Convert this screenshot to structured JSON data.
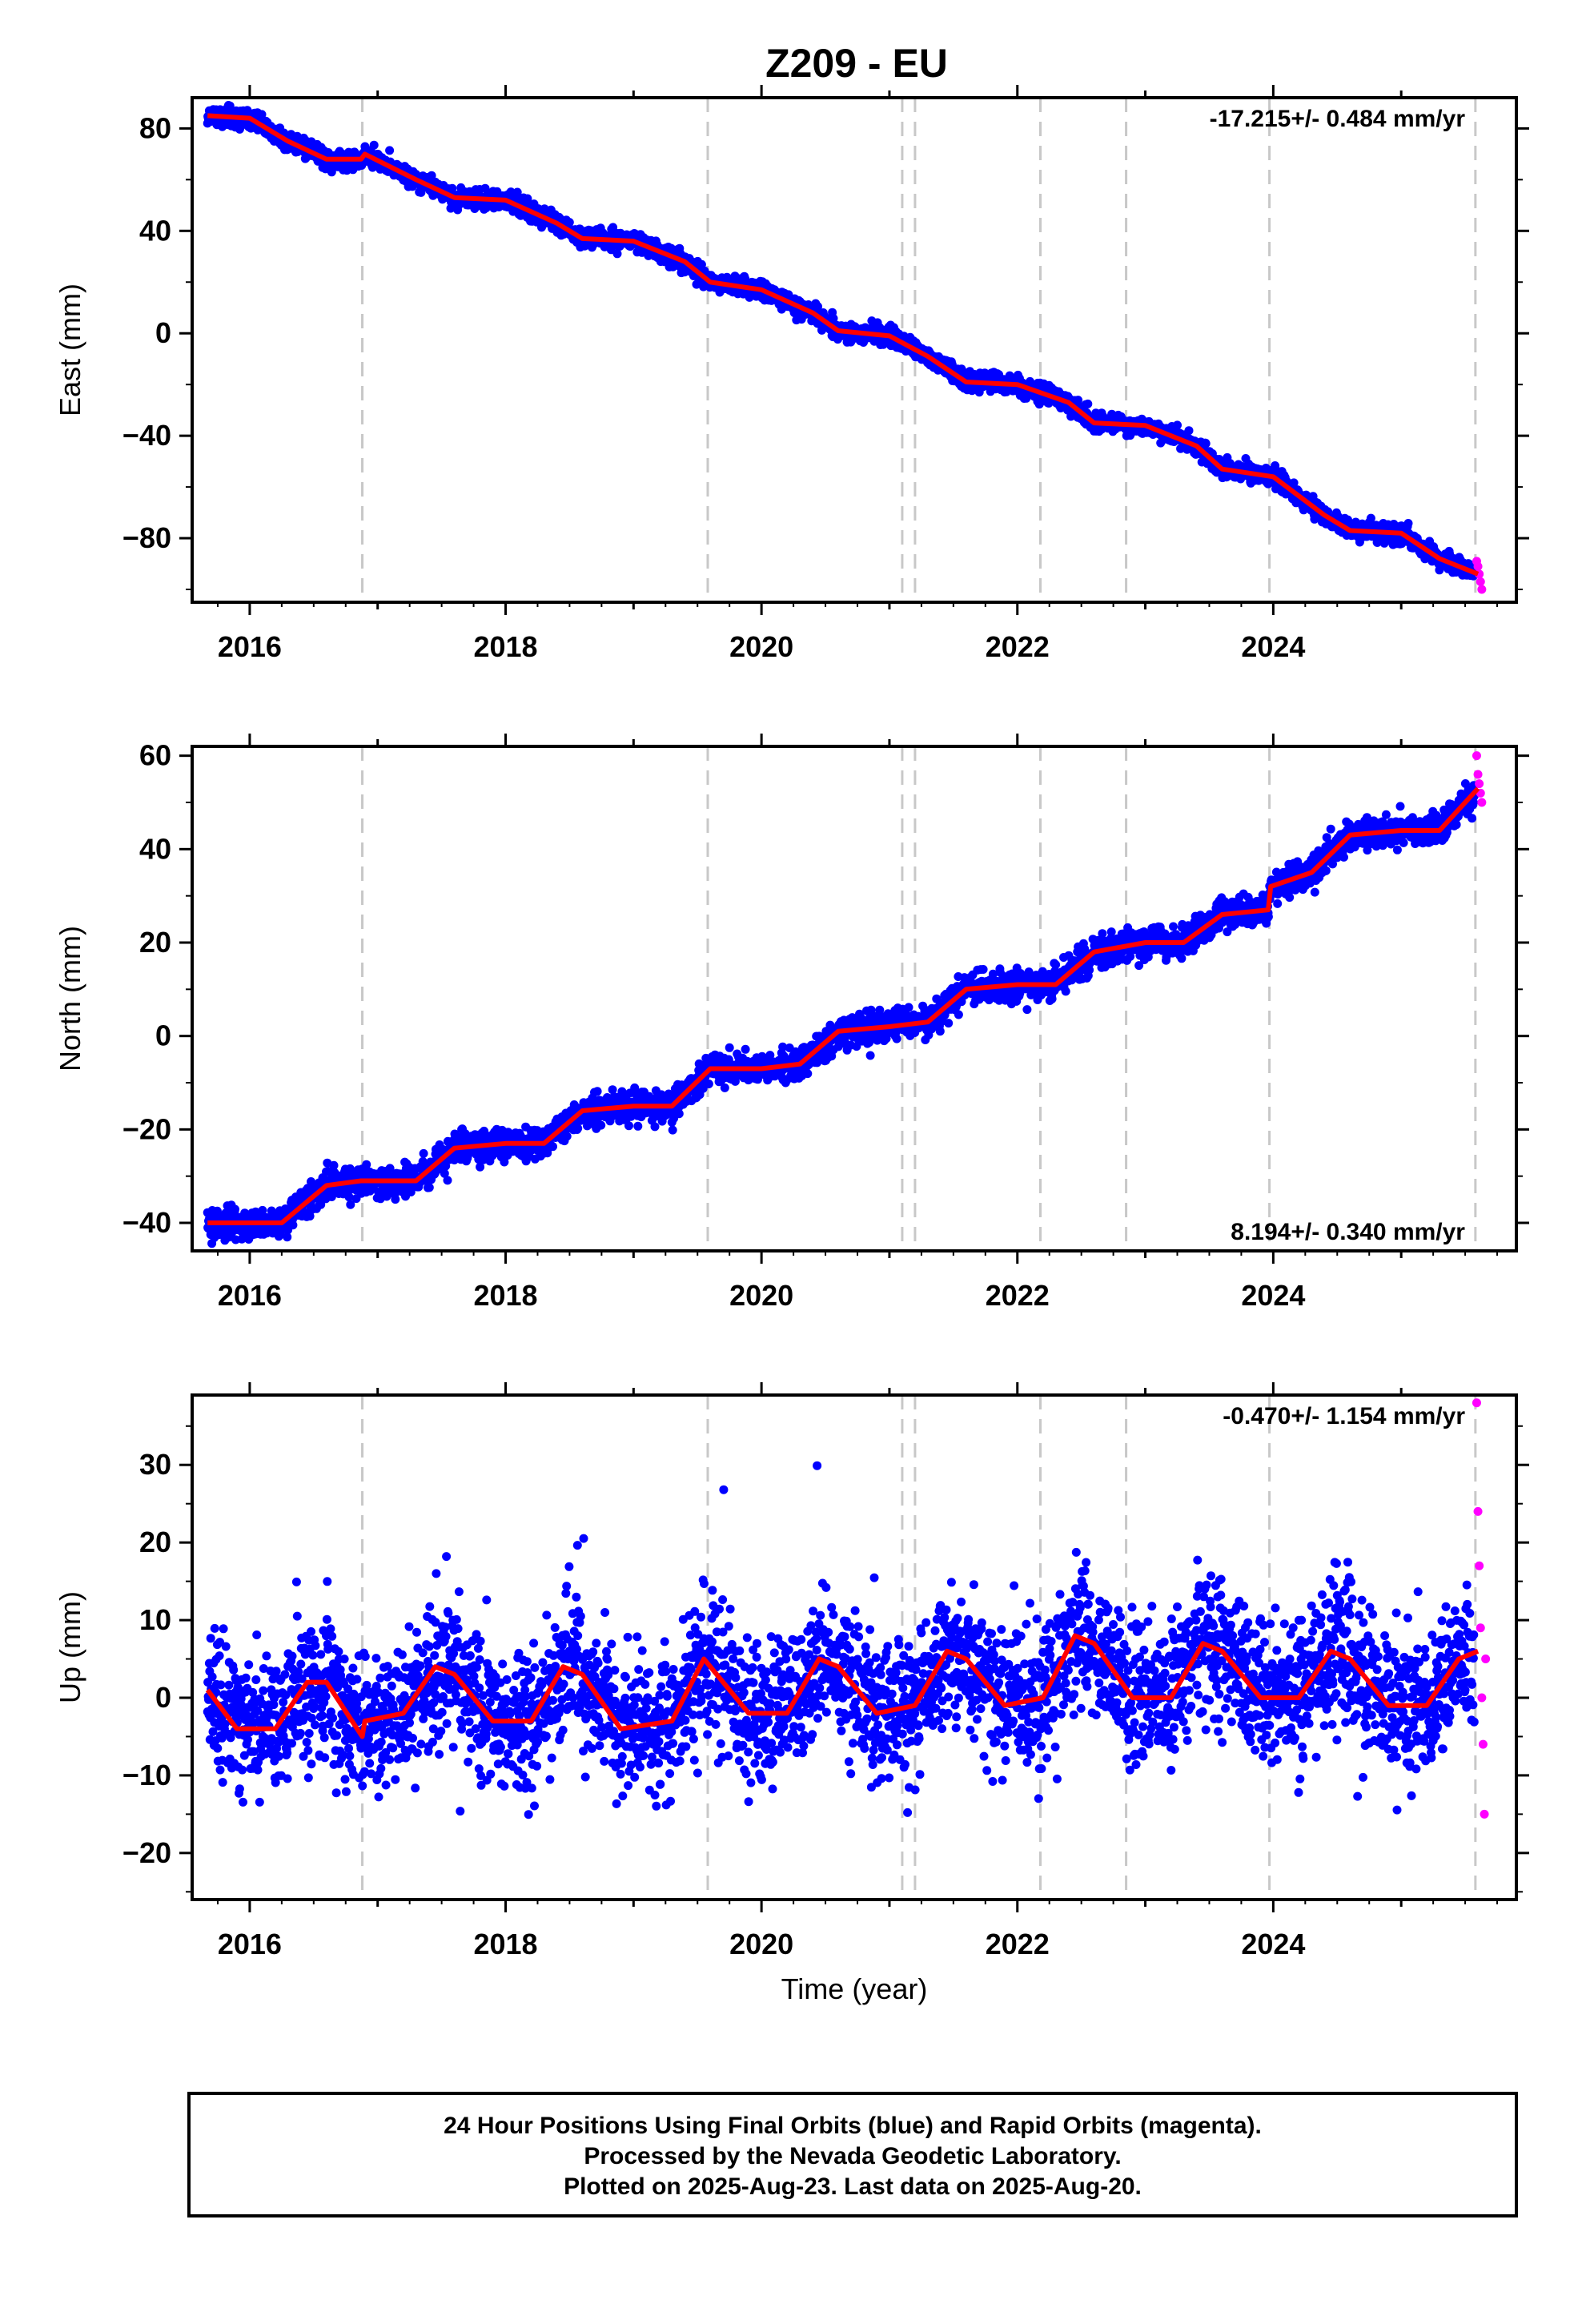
{
  "title": "Z209 - EU",
  "footer": {
    "line1": "24 Hour Positions Using Final Orbits (blue) and Rapid Orbits (magenta).",
    "line2": "Processed by the Nevada Geodetic Laboratory.",
    "line3": "Plotted on 2025-Aug-23. Last data on 2025-Aug-20."
  },
  "colors": {
    "final_orbits": "#0000ff",
    "rapid_orbits": "#ff00ff",
    "model": "#ff0000",
    "event_lines": "#c8c8c8"
  },
  "chart_data": [
    {
      "type": "scatter",
      "ylabel": "East (mm)",
      "xlabel": "",
      "rate_text": "-17.215+/- 0.484 mm/yr",
      "xlim": [
        2015.55,
        2025.9
      ],
      "ylim": [
        -105,
        92
      ],
      "xticks": [
        2016,
        2018,
        2020,
        2022,
        2024
      ],
      "yticks": [
        80,
        40,
        0,
        -40,
        -80
      ],
      "event_lines": [
        2016.88,
        2019.58,
        2021.1,
        2021.2,
        2022.18,
        2022.85,
        2023.97,
        2025.58
      ],
      "series": [
        {
          "name": "Final Orbits",
          "color": "#0000ff",
          "x_range": [
            2015.67,
            2025.57
          ],
          "point_count": 3500
        },
        {
          "name": "Rapid Orbits",
          "color": "#ff00ff",
          "x": [
            2025.59,
            2025.6,
            2025.61,
            2025.62,
            2025.63
          ],
          "y": [
            -89,
            -91,
            -94,
            -97,
            -100
          ]
        }
      ],
      "model_curve": {
        "x": [
          2015.67,
          2016.0,
          2016.3,
          2016.6,
          2016.87,
          2016.9,
          2017.3,
          2017.6,
          2018.0,
          2018.4,
          2018.6,
          2019.0,
          2019.4,
          2019.6,
          2020.0,
          2020.4,
          2020.6,
          2021.0,
          2021.3,
          2021.6,
          2022.0,
          2022.4,
          2022.6,
          2023.0,
          2023.4,
          2023.6,
          2024.0,
          2024.4,
          2024.6,
          2025.0,
          2025.3,
          2025.6
        ],
        "y": [
          85,
          84,
          75,
          68,
          68,
          70,
          60,
          53,
          52,
          43,
          37,
          36,
          28,
          20,
          17,
          8,
          1,
          -1,
          -9,
          -19,
          -20,
          -27,
          -35,
          -36,
          -44,
          -53,
          -56,
          -71,
          -77,
          -78,
          -88,
          -94
        ]
      }
    },
    {
      "type": "scatter",
      "ylabel": "North (mm)",
      "xlabel": "",
      "rate_text": "8.194+/- 0.340 mm/yr",
      "xlim": [
        2015.55,
        2025.9
      ],
      "ylim": [
        -46,
        62
      ],
      "xticks": [
        2016,
        2018,
        2020,
        2022,
        2024
      ],
      "yticks": [
        60,
        40,
        20,
        0,
        -20,
        -40
      ],
      "event_lines": [
        2016.88,
        2019.58,
        2021.1,
        2021.2,
        2022.18,
        2022.85,
        2023.97,
        2025.58
      ],
      "series": [
        {
          "name": "Final Orbits",
          "color": "#0000ff",
          "x_range": [
            2015.67,
            2025.57
          ],
          "point_count": 3500
        },
        {
          "name": "Rapid Orbits",
          "color": "#ff00ff",
          "x": [
            2025.59,
            2025.6,
            2025.61,
            2025.62,
            2025.63
          ],
          "y": [
            60,
            56,
            54,
            52,
            50
          ]
        }
      ],
      "model_curve": {
        "x": [
          2015.67,
          2016.0,
          2016.25,
          2016.6,
          2016.87,
          2017.3,
          2017.6,
          2018.0,
          2018.3,
          2018.6,
          2019.0,
          2019.3,
          2019.6,
          2020.0,
          2020.3,
          2020.6,
          2021.0,
          2021.3,
          2021.6,
          2022.0,
          2022.3,
          2022.6,
          2023.0,
          2023.3,
          2023.6,
          2023.96,
          2023.98,
          2024.3,
          2024.6,
          2025.0,
          2025.3,
          2025.6
        ],
        "y": [
          -40,
          -40,
          -40,
          -32,
          -31,
          -31,
          -24,
          -23,
          -23,
          -16,
          -15,
          -15,
          -7,
          -7,
          -6,
          1,
          2,
          3,
          10,
          11,
          11,
          18,
          20,
          20,
          26,
          27,
          32,
          35,
          43,
          44,
          44,
          53
        ]
      }
    },
    {
      "type": "scatter",
      "ylabel": "Up (mm)",
      "xlabel": "Time (year)",
      "rate_text": "-0.470+/- 1.154 mm/yr",
      "xlim": [
        2015.55,
        2025.9
      ],
      "ylim": [
        -26,
        39
      ],
      "xticks": [
        2016,
        2018,
        2020,
        2022,
        2024
      ],
      "yticks": [
        30,
        20,
        10,
        0,
        -10,
        -20
      ],
      "event_lines": [
        2016.88,
        2019.58,
        2021.1,
        2021.2,
        2022.18,
        2022.85,
        2023.97,
        2025.58
      ],
      "series": [
        {
          "name": "Final Orbits",
          "color": "#0000ff",
          "x_range": [
            2015.67,
            2025.57
          ],
          "point_count": 3500
        },
        {
          "name": "Rapid Orbits",
          "color": "#ff00ff",
          "x": [
            2025.59,
            2025.6,
            2025.61,
            2025.62,
            2025.63,
            2025.64,
            2025.65,
            2025.66
          ],
          "y": [
            38,
            24,
            17,
            9,
            0,
            -6,
            -15,
            5
          ]
        }
      ],
      "model_curve": {
        "x": [
          2015.67,
          2015.9,
          2016.2,
          2016.45,
          2016.6,
          2016.88,
          2016.9,
          2017.2,
          2017.45,
          2017.6,
          2017.9,
          2018.2,
          2018.45,
          2018.6,
          2018.9,
          2019.3,
          2019.55,
          2019.6,
          2019.9,
          2020.2,
          2020.45,
          2020.6,
          2020.9,
          2021.2,
          2021.45,
          2021.6,
          2021.9,
          2022.2,
          2022.45,
          2022.6,
          2022.9,
          2023.2,
          2023.45,
          2023.6,
          2023.9,
          2024.2,
          2024.45,
          2024.6,
          2024.9,
          2025.2,
          2025.45,
          2025.6
        ],
        "y": [
          1,
          -4,
          -4,
          2,
          2,
          -5,
          -3,
          -2,
          4,
          3,
          -3,
          -3,
          4,
          3,
          -4,
          -3,
          5,
          4,
          -2,
          -2,
          5,
          4,
          -2,
          -1,
          6,
          5,
          -1,
          0,
          8,
          7,
          0,
          0,
          7,
          6,
          0,
          0,
          6,
          5,
          -1,
          -1,
          5,
          6
        ]
      }
    }
  ]
}
